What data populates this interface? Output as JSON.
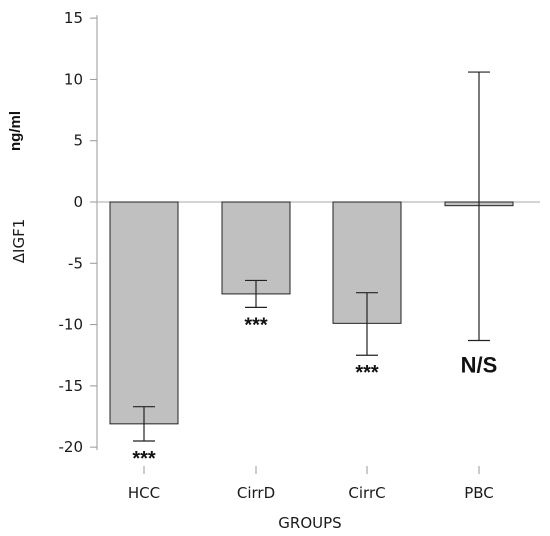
{
  "chart_data": {
    "type": "bar",
    "categories": [
      "HCC",
      "CirrD",
      "CirrC",
      "PBC"
    ],
    "values": [
      -18.1,
      -7.5,
      -9.9,
      -0.3
    ],
    "error_low": [
      -19.5,
      -8.6,
      -12.5,
      -11.3
    ],
    "error_high": [
      -16.7,
      -6.4,
      -7.4,
      10.6
    ],
    "significance": [
      "***",
      "***",
      "***",
      "N/S"
    ],
    "xlabel": "GROUPS",
    "ylabel": "ΔIGF1",
    "yunit": "ng/ml",
    "ylim": [
      -21,
      16
    ],
    "yticks": [
      15,
      10,
      5,
      0,
      -5,
      -10,
      -15,
      -20
    ],
    "grid": false,
    "zero_line": true,
    "colors": {
      "bar_fill": "#c0c0c0",
      "bar_stroke": "#222222",
      "axis": "#999999",
      "zero_line": "#aaaaaa"
    }
  }
}
